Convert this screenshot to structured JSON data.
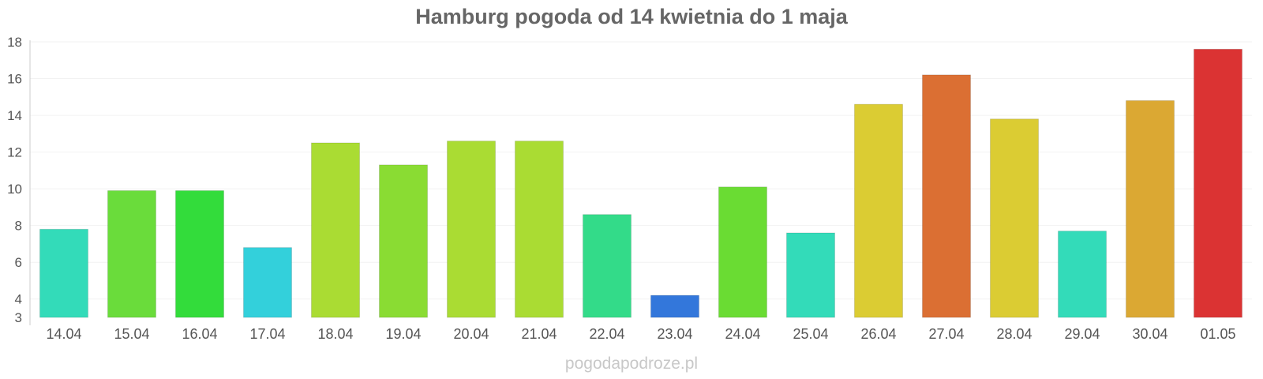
{
  "chart_data": {
    "type": "bar",
    "title": "Hamburg pogoda od 14 kwietnia do 1 maja",
    "xlabel": "",
    "ylabel": "",
    "ylim": [
      3,
      18
    ],
    "yticks": [
      3,
      4,
      6,
      8,
      10,
      12,
      14,
      16,
      18
    ],
    "grid": true,
    "legend": "none",
    "categories": [
      "14.04",
      "15.04",
      "16.04",
      "17.04",
      "18.04",
      "19.04",
      "20.04",
      "21.04",
      "22.04",
      "23.04",
      "24.04",
      "25.04",
      "26.04",
      "27.04",
      "28.04",
      "29.04",
      "30.04",
      "01.05"
    ],
    "values": [
      7.8,
      9.9,
      9.9,
      6.8,
      12.5,
      11.3,
      12.6,
      12.6,
      8.6,
      4.2,
      10.1,
      7.6,
      14.6,
      16.2,
      13.8,
      7.7,
      14.8,
      17.6
    ],
    "colors": [
      "#33dbb9",
      "#6adc3b",
      "#33dc3b",
      "#33d0db",
      "#aadc33",
      "#8adc33",
      "#aadc33",
      "#aadc33",
      "#33db89",
      "#3377db",
      "#6adc33",
      "#33dbb9",
      "#dbcc33",
      "#db6f33",
      "#dbcc33",
      "#33dbb9",
      "#dba833",
      "#db3333"
    ]
  },
  "watermark": "pogodapodroze.pl"
}
